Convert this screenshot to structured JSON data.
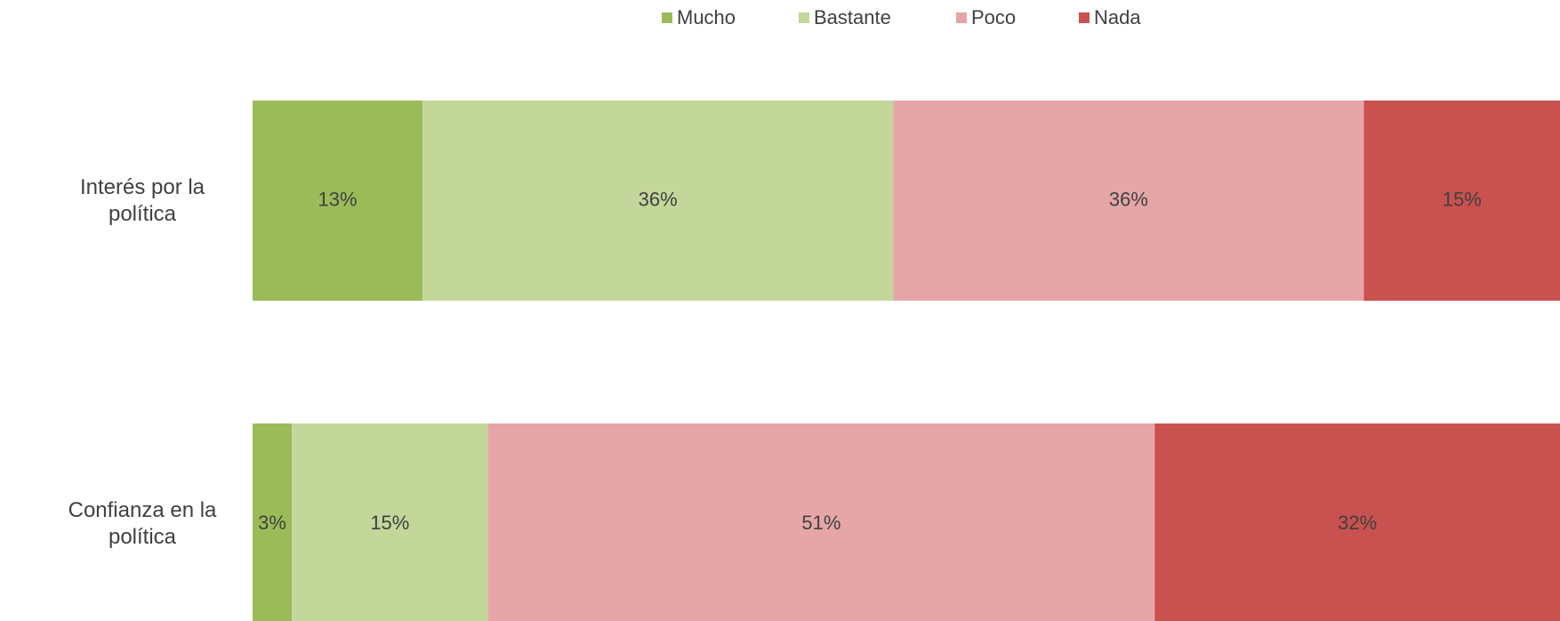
{
  "chart_data": {
    "type": "stacked_bar_horizontal",
    "categories": [
      "Interés por la política",
      "Confianza en la política"
    ],
    "series": [
      {
        "name": "Mucho",
        "color": "#9bbb59",
        "values": [
          13,
          3
        ],
        "value_labels": [
          "13%",
          "3%"
        ]
      },
      {
        "name": "Bastante",
        "color": "#c4d79b",
        "values": [
          36,
          15
        ],
        "value_labels": [
          "36%",
          "15%"
        ]
      },
      {
        "name": "Poco",
        "color": "#e6a6a7",
        "values": [
          36,
          51
        ],
        "value_labels": [
          "36%",
          "51%"
        ]
      },
      {
        "name": "Nada",
        "color": "#c9514f",
        "values": [
          15,
          32
        ],
        "value_labels": [
          "15%",
          "32%"
        ]
      }
    ],
    "xlim": [
      0,
      100
    ],
    "legend": "top"
  }
}
